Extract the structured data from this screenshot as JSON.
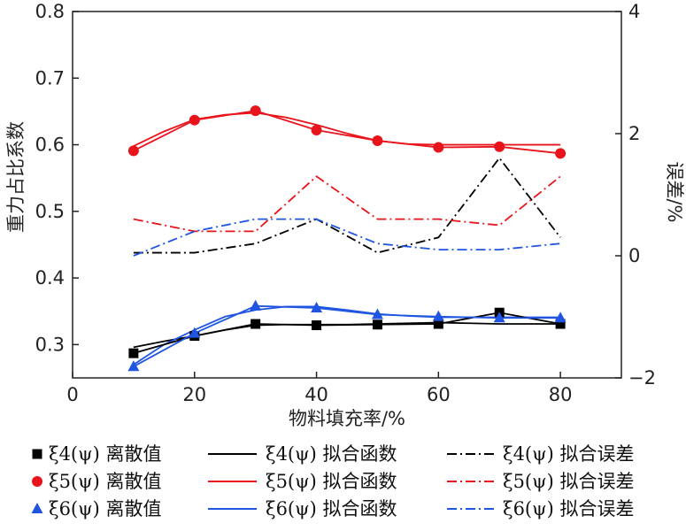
{
  "chart_data": {
    "type": "line",
    "xlabel": "物料填充率/%",
    "ylabel_left": "重力占比系数",
    "ylabel_right": "误差/%",
    "xlim": [
      0,
      90
    ],
    "ylim_left": [
      0.25,
      0.8
    ],
    "ylim_right": [
      -2,
      4
    ],
    "x_ticks": [
      "0",
      "20",
      "40",
      "60",
      "80"
    ],
    "y_left_ticks": [
      "0.3",
      "0.4",
      "0.5",
      "0.6",
      "0.7",
      "0.8"
    ],
    "y_right_ticks": [
      "−2",
      "0",
      "2",
      "4"
    ],
    "colors": {
      "s4": "#000000",
      "s5": "#e8141b",
      "s6": "#1f55e0"
    },
    "discrete_x": [
      10,
      20,
      30,
      40,
      50,
      60,
      70,
      80
    ],
    "discrete": [
      {
        "key": "s4",
        "marker": "square",
        "name": "ξ4(ψ) 离散值",
        "values": [
          0.287,
          0.313,
          0.331,
          0.329,
          0.33,
          0.331,
          0.348,
          0.331
        ]
      },
      {
        "key": "s5",
        "marker": "circle",
        "name": "ξ5(ψ) 离散值",
        "values": [
          0.591,
          0.637,
          0.651,
          0.622,
          0.606,
          0.596,
          0.597,
          0.587
        ]
      },
      {
        "key": "s6",
        "marker": "triangle",
        "name": "ξ6(ψ) 离散值",
        "values": [
          0.267,
          0.317,
          0.358,
          0.355,
          0.345,
          0.342,
          0.34,
          0.34
        ]
      }
    ],
    "fit_x": [
      10,
      15,
      20,
      25,
      30,
      35,
      40,
      45,
      50,
      55,
      60,
      65,
      70,
      75,
      80
    ],
    "fits": [
      {
        "key": "s4",
        "name": "ξ4(ψ) 拟合函数",
        "values": [
          0.296,
          0.305,
          0.313,
          0.322,
          0.329,
          0.33,
          0.33,
          0.33,
          0.331,
          0.332,
          0.333,
          0.332,
          0.331,
          0.331,
          0.331
        ]
      },
      {
        "key": "s5",
        "name": "ξ5(ψ) 拟合函数",
        "values": [
          0.598,
          0.62,
          0.638,
          0.645,
          0.648,
          0.641,
          0.63,
          0.617,
          0.606,
          0.601,
          0.6,
          0.6,
          0.6,
          0.6,
          0.6
        ]
      },
      {
        "key": "s6",
        "name": "ξ6(ψ) 拟合函数",
        "values": [
          0.27,
          0.3,
          0.322,
          0.342,
          0.352,
          0.357,
          0.357,
          0.352,
          0.346,
          0.343,
          0.341,
          0.341,
          0.341,
          0.341,
          0.341
        ]
      }
    ],
    "errors": [
      {
        "key": "s4",
        "name": "ξ4(ψ) 拟合误差",
        "x": [
          10,
          20,
          30,
          40,
          50,
          60,
          70,
          80
        ],
        "values": [
          0.05,
          0.05,
          0.2,
          0.6,
          0.05,
          0.3,
          1.6,
          0.3
        ]
      },
      {
        "key": "s5",
        "name": "ξ5(ψ) 拟合误差",
        "x": [
          10,
          20,
          30,
          40,
          50,
          60,
          70,
          80
        ],
        "values": [
          0.6,
          0.4,
          0.4,
          1.3,
          0.6,
          0.6,
          0.5,
          1.3
        ]
      },
      {
        "key": "s6",
        "name": "ξ6(ψ) 拟合误差",
        "x": [
          10,
          20,
          30,
          40,
          50,
          60,
          70,
          80
        ],
        "values": [
          0.0,
          0.4,
          0.6,
          0.6,
          0.2,
          0.1,
          0.1,
          0.2
        ]
      }
    ],
    "legend_position": "bottom",
    "grid": false
  }
}
